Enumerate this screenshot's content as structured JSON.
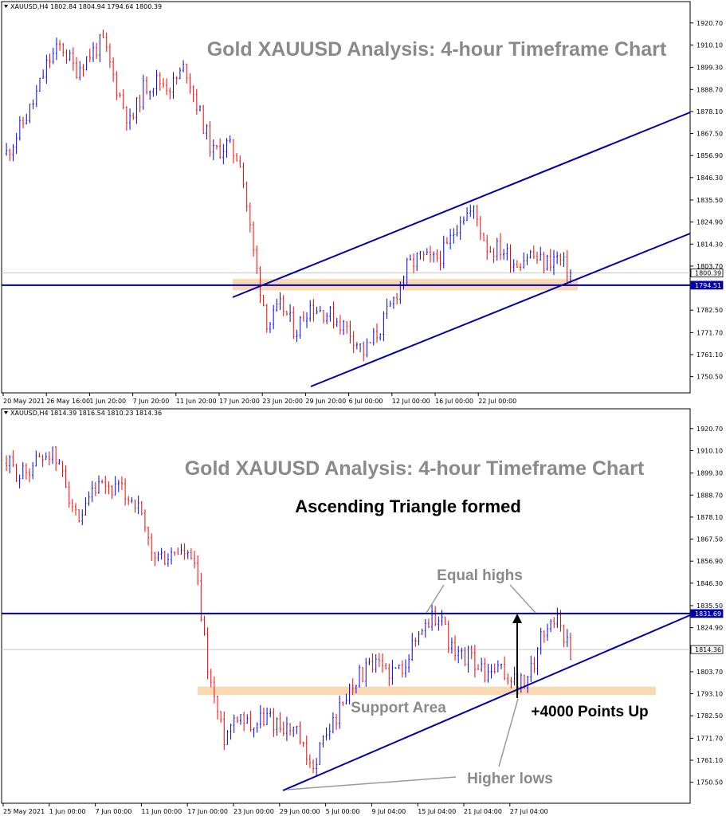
{
  "colors": {
    "bull": "#0000ff",
    "bear": "#ff0000",
    "trendline": "#0000aa",
    "support_zone": "#f9d2a4",
    "gridline": "#c8c8c8",
    "annotation_gray": "#8a8a8a"
  },
  "chart_data": [
    {
      "type": "candlestick",
      "header": "XAUUSD,H4  1802.84 1804.94 1794.64 1800.39",
      "title": "Gold XAUUSD Analysis: 4-hour Timeframe Chart",
      "ylim": [
        1745,
        1926
      ],
      "y_ticks": [
        "1920.70",
        "1910.10",
        "1899.30",
        "1888.70",
        "1878.10",
        "1867.50",
        "1856.90",
        "1846.30",
        "1835.50",
        "1824.90",
        "1814.30",
        "1803.70",
        "1782.50",
        "1771.70",
        "1761.10",
        "1750.50"
      ],
      "x_ticks": [
        "20 May 2021",
        "26 May 16:00",
        "1 Jun 20:00",
        "7 Jun 20:00",
        "11 Jun 20:00",
        "17 Jun 20:00",
        "23 Jun 20:00",
        "29 Jun 20:00",
        "6 Jul 00:00",
        "12 Jul 00:00",
        "16 Jul 00:00",
        "22 Jul 00:00"
      ],
      "price_tags": [
        {
          "label": "1800.39",
          "value": 1800.39,
          "style": "current"
        },
        {
          "label": "1794.51",
          "value": 1794.51,
          "style": "line"
        }
      ],
      "horizontal_line": 1794.51,
      "support_zone": [
        1792,
        1797.5
      ],
      "price_path": [
        [
          "20 May 2021",
          1858
        ],
        [
          "22 May",
          1870
        ],
        [
          "24 May",
          1883
        ],
        [
          "25 May",
          1902
        ],
        [
          "26 May 16:00",
          1910
        ],
        [
          "28 May",
          1898
        ],
        [
          "30 May",
          1905
        ],
        [
          "1 Jun 20:00",
          1912
        ],
        [
          "3 Jun",
          1890
        ],
        [
          "5 Jun",
          1872
        ],
        [
          "6 Jun",
          1890
        ],
        [
          "7 Jun 20:00",
          1893
        ],
        [
          "9 Jun",
          1890
        ],
        [
          "10 Jun",
          1900
        ],
        [
          "11 Jun 20:00",
          1878
        ],
        [
          "12 Jun",
          1858
        ],
        [
          "13 Jun",
          1862
        ],
        [
          "14 Jun",
          1855
        ],
        [
          "15 Jun",
          1808
        ],
        [
          "16 Jun",
          1775
        ],
        [
          "17 Jun 20:00",
          1785
        ],
        [
          "19 Jun",
          1772
        ],
        [
          "21 Jun",
          1785
        ],
        [
          "23 Jun 20:00",
          1782
        ],
        [
          "25 Jun",
          1778
        ],
        [
          "27 Jun",
          1772
        ],
        [
          "29 Jun 20:00",
          1762
        ],
        [
          "1 Jul",
          1772
        ],
        [
          "3 Jul",
          1785
        ],
        [
          "6 Jul 00:00",
          1802
        ],
        [
          "8 Jul",
          1808
        ],
        [
          "10 Jul",
          1806
        ],
        [
          "12 Jul 00:00",
          1812
        ],
        [
          "13 Jul",
          1828
        ],
        [
          "14 Jul",
          1830
        ],
        [
          "15 Jul",
          1812
        ],
        [
          "16 Jul 00:00",
          1812
        ],
        [
          "18 Jul",
          1805
        ],
        [
          "20 Jul",
          1810
        ],
        [
          "22 Jul 00:00",
          1805
        ],
        [
          "23 Jul",
          1808
        ],
        [
          "24 Jul",
          1800
        ]
      ]
    },
    {
      "type": "candlestick",
      "header": "XAUUSD,H4  1814.39 1816.54 1810.23 1814.36",
      "title": "Gold XAUUSD Analysis: 4-hour Timeframe Chart",
      "subtitle": "Ascending Triangle formed",
      "ylim": [
        1745,
        1926
      ],
      "y_ticks": [
        "1920.70",
        "1910.10",
        "1899.30",
        "1888.70",
        "1878.10",
        "1867.50",
        "1856.90",
        "1846.30",
        "1835.50",
        "1824.90",
        "1814.30",
        "1803.70",
        "1793.10",
        "1782.50",
        "1771.70",
        "1761.10",
        "1750.50"
      ],
      "x_ticks": [
        "25 May 2021",
        "1 Jun 00:00",
        "7 Jun 00:00",
        "11 Jun 00:00",
        "17 Jun 00:00",
        "23 Jun 00:00",
        "29 Jun 00:00",
        "5 Jul 00:00",
        "9 Jul 04:00",
        "15 Jul 04:00",
        "21 Jul 04:00",
        "27 Jul 04:00"
      ],
      "price_tags": [
        {
          "label": "1831.69",
          "value": 1831.69,
          "style": "line"
        },
        {
          "label": "1814.36",
          "value": 1814.36,
          "style": "current"
        }
      ],
      "horizontal_line": 1831.69,
      "support_zone": [
        1792.5,
        1796.5
      ],
      "annotations": {
        "equal_highs": "Equal highs",
        "support_area": "Support Area",
        "points_up": "+4000 Points Up",
        "higher_lows": "Higher lows"
      },
      "price_path": [
        [
          "25 May 2021",
          1904
        ],
        [
          "27 May",
          1898
        ],
        [
          "29 May",
          1905
        ],
        [
          "31 May",
          1910
        ],
        [
          "1 Jun 00:00",
          1898
        ],
        [
          "3 Jun",
          1872
        ],
        [
          "5 Jun",
          1890
        ],
        [
          "7 Jun 00:00",
          1892
        ],
        [
          "9 Jun",
          1890
        ],
        [
          "10 Jun",
          1885
        ],
        [
          "11 Jun 00:00",
          1860
        ],
        [
          "13 Jun",
          1858
        ],
        [
          "15 Jun",
          1862
        ],
        [
          "16 Jun",
          1855
        ],
        [
          "17 Jun 00:00",
          1802
        ],
        [
          "18 Jun",
          1772
        ],
        [
          "19 Jun",
          1785
        ],
        [
          "21 Jun",
          1778
        ],
        [
          "23 Jun 00:00",
          1782
        ],
        [
          "25 Jun",
          1778
        ],
        [
          "27 Jun",
          1775
        ],
        [
          "29 Jun 00:00",
          1756
        ],
        [
          "1 Jul",
          1772
        ],
        [
          "3 Jul",
          1785
        ],
        [
          "5 Jul 00:00",
          1800
        ],
        [
          "7 Jul",
          1805
        ],
        [
          "9 Jul 04:00",
          1806
        ],
        [
          "11 Jul",
          1803
        ],
        [
          "13 Jul",
          1815
        ],
        [
          "14 Jul",
          1828
        ],
        [
          "15 Jul 04:00",
          1831
        ],
        [
          "17 Jul",
          1810
        ],
        [
          "19 Jul",
          1812
        ],
        [
          "21 Jul 04:00",
          1802
        ],
        [
          "23 Jul",
          1804
        ],
        [
          "25 Jul",
          1800
        ],
        [
          "27 Jul 04:00",
          1797
        ],
        [
          "28 Jul",
          1822
        ],
        [
          "29 Jul",
          1831
        ],
        [
          "30 Jul",
          1814
        ]
      ]
    }
  ]
}
